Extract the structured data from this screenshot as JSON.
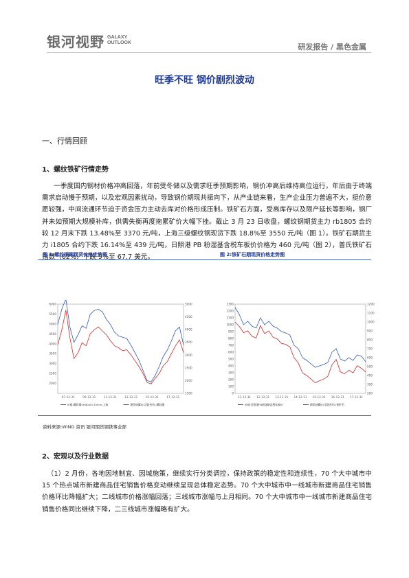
{
  "header": {
    "logo_cn": "银河视野",
    "logo_en_1": "GALAXY",
    "logo_en_2": "OUTLOOK",
    "report_type": "研发报告 / 黑色金属"
  },
  "title": "旺季不旺 钢价剧烈波动",
  "section1": {
    "heading": "一、行情回顾",
    "subheading": "1、螺纹铁矿行情走势",
    "paragraph": "一季度国内钢材价格冲高回落，年前受冬储以及需求旺季预期影响，钢价冲高后维持高位运行，年后由于终端需求启动慢于预期，以及宏观因素扰动，导致钢价期现共振向下，从产业链来看，生产企业压力普遍不大，挺价意愿较强，中间流通环节迫于资金压力主动去库对价格形成压制。铁矿石方面，受高库存以及限产延长等影响，钢厂并未如预期大规模补库，供需失衡再度拖累矿价大幅下挫。截止 3 月 23 日收盘，螺纹钢期货主力 rb1805 合约较 12 月末下跌 13.48%至 3370 元/吨，上海三级螺纹钢现货下跌 18.8%至 3550 元/吨（图 1）。铁矿石期货主力 i1805 合约下跌 16.14%至 439 元/吨，日照港 PB 粉湿基含税车板价价格为 460 元/吨（图 2），普氏铁矿石指数（62%）下跌 9%至 67.7 美元。"
  },
  "figures": {
    "fig1_caption": "图 1:螺纹钢期现货价格走势图",
    "fig2_caption": "图 2:铁矿石期现货价格走势图",
    "source": "资料来源:WIND 资讯    银河期货钢铁事业部"
  },
  "chart_data": [
    {
      "type": "line",
      "title": "",
      "xlabel": "",
      "ylabel": "",
      "x_ticks": [
        "07-12-31",
        "09-12-31",
        "11-12-31",
        "13-12-31",
        "15-12-31",
        "17-12-31"
      ],
      "y_left_ticks": [
        2000,
        2500,
        3000,
        3500,
        4000,
        4500,
        5000,
        5500,
        6000
      ],
      "y_right_ticks": [
        1500,
        2000,
        2500,
        3000,
        3500,
        4000,
        4500,
        5000
      ],
      "ylim_left": [
        1500,
        6000
      ],
      "ylim_right": [
        1500,
        5000
      ],
      "series": [
        {
          "name": "价格:螺纹钢:HRB400 20mm:上海",
          "color": "#d22727",
          "values": [
            3950,
            4700,
            5700,
            4300,
            3250,
            3550,
            4050,
            3900,
            4500,
            4700,
            4850,
            4650,
            4450,
            4150,
            3900,
            3800,
            3650,
            3700,
            3450,
            3150,
            2850,
            2500,
            2050,
            1980,
            2250,
            2500,
            2900,
            3100,
            3500,
            3900,
            4200,
            3550
          ]
        },
        {
          "name": "期货结算价(活跃合约):螺纹钢",
          "color": "#2e59b4",
          "values": [
            4200,
            4800,
            5200,
            4100,
            3500,
            3800,
            4150,
            4050,
            4600,
            4750,
            4800,
            4700,
            4400,
            4200,
            3900,
            3750,
            3700,
            3650,
            3400,
            3100,
            2800,
            2400,
            2000,
            1950,
            2200,
            2550,
            2950,
            3200,
            3550,
            3950,
            4100,
            3400
          ]
        }
      ]
    },
    {
      "type": "line",
      "title": "",
      "xlabel": "",
      "ylabel": "",
      "x_ticks": [
        "11-12-31",
        "12-12-31",
        "13-12-31",
        "14-12-31",
        "15-12-31",
        "16-12-31",
        "17-12-31"
      ],
      "y_left_ticks": [
        0,
        100,
        200,
        300,
        400,
        500,
        600,
        700,
        800,
        900,
        1000,
        1100,
        1200,
        1300
      ],
      "y_right_ticks": [
        200,
        300,
        400,
        500,
        600,
        700,
        800,
        900,
        1000,
        1100,
        1200
      ],
      "ylim_left": [
        0,
        1300
      ],
      "ylim_right": [
        200,
        1200
      ],
      "series": [
        {
          "name": "价格:日照港PB粉湿基含税车板价",
          "color": "#2e59b4",
          "values": [
            1250,
            1150,
            1000,
            1050,
            980,
            950,
            1100,
            1000,
            1050,
            980,
            950,
            900,
            880,
            850,
            700,
            650,
            520,
            480,
            430,
            380,
            400,
            420,
            450,
            600,
            650,
            500,
            470,
            520,
            480,
            560,
            540,
            460
          ]
        },
        {
          "name": "期货结算价(活跃合约):铁矿石",
          "color": "#d22727",
          "values": [
            1000,
            950,
            880,
            900,
            840,
            820,
            960,
            870,
            900,
            830,
            810,
            760,
            750,
            720,
            600,
            540,
            430,
            400,
            360,
            320,
            340,
            360,
            390,
            520,
            580,
            440,
            420,
            460,
            430,
            510,
            480,
            439
          ]
        }
      ]
    }
  ],
  "section2": {
    "heading": "2、宏观以及行业数据",
    "paragraph": "（1）2 月份，各地因地制宜、因城施策，继续实行分类调控，保持政策的稳定性和连续性，70 个大中城市中 15 个热点城市新建商品住宅销售价格变动继续呈现总体稳定态势。70 个大中城市中一线城市新建商品住宅销售价格环比降幅扩大；二线城市价格涨幅回落；三线城市涨幅与上月相同。70 个大中城市中一线城市新建商品住宅销售价格同比继续下降，二三线城市涨幅略有扩大。"
  }
}
